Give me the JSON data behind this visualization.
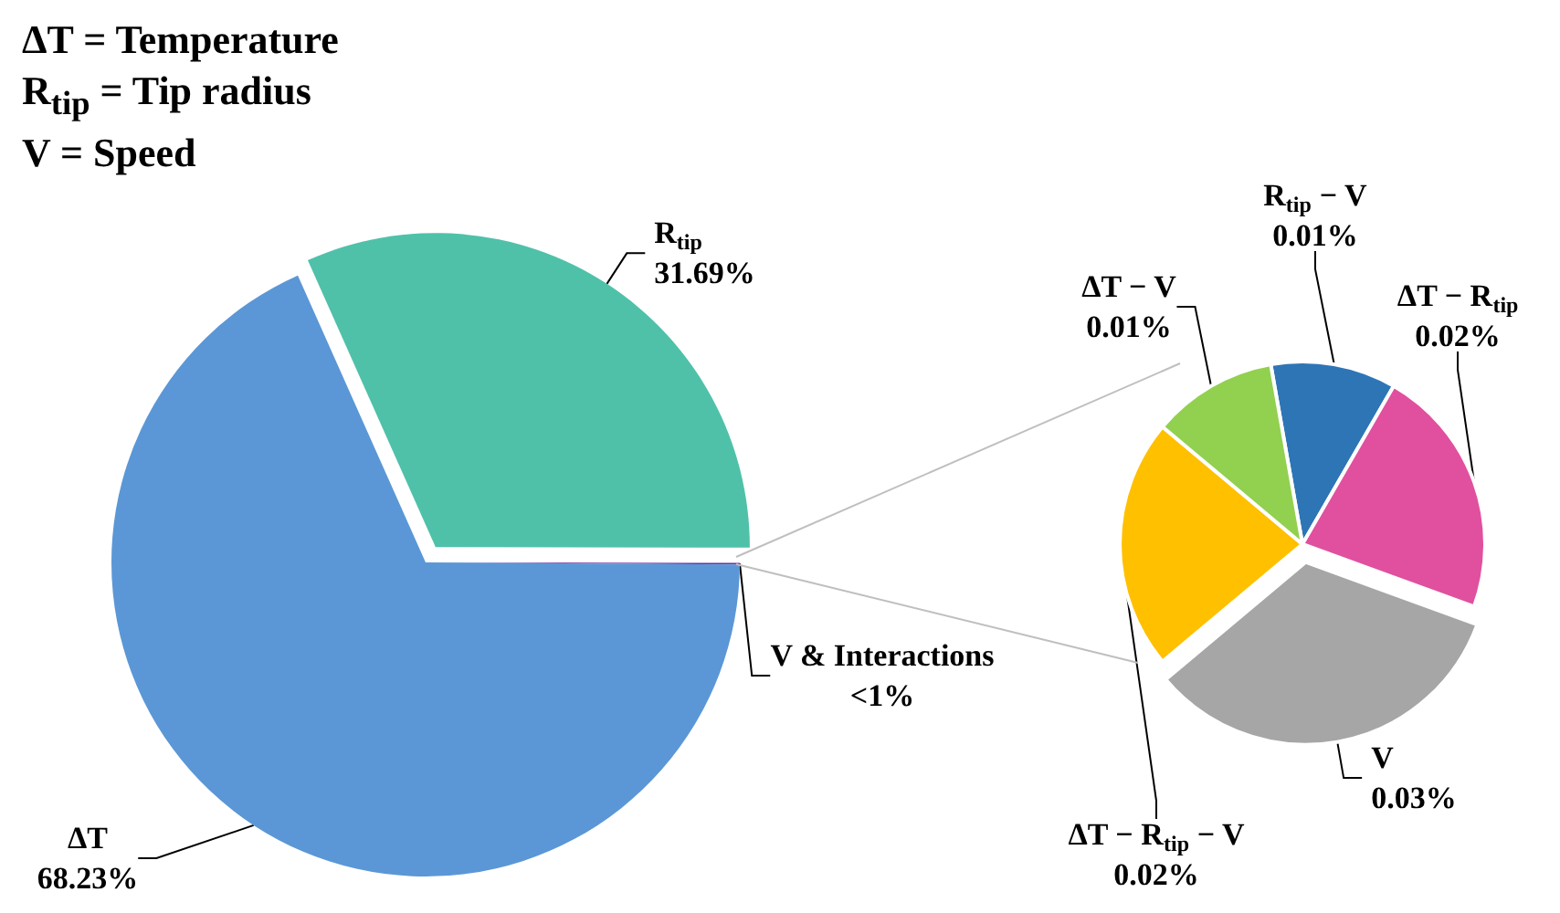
{
  "chart_data": [
    {
      "type": "pie",
      "categories": [
        "R$_{tip}$",
        "V & Interactions",
        "ΔT"
      ],
      "values": [
        31.69,
        0.08,
        68.23
      ],
      "value_labels": [
        "31.69%",
        "<1%",
        "68.23%"
      ],
      "colors": [
        "#4fc1a9",
        "#7030a0",
        "#5b97d6"
      ],
      "annotations": [
        "ΔT = Temperature",
        "R$_{tip}$ = Tip radius",
        "V = Speed"
      ]
    },
    {
      "type": "pie",
      "categories": [
        "R$_{tip}$ − V",
        "ΔT − R$_{tip}$",
        "V",
        "ΔT − R$_{tip}$ − V",
        "ΔT − V"
      ],
      "values": [
        0.01,
        0.02,
        0.03,
        0.02,
        0.01
      ],
      "value_labels": [
        "0.01%",
        "0.02%",
        "0.03%",
        "0.02%",
        "0.01%"
      ],
      "colors": [
        "#2e75b6",
        "#e0509f",
        "#a6a6a6",
        "#ffc000",
        "#92d050"
      ]
    }
  ]
}
